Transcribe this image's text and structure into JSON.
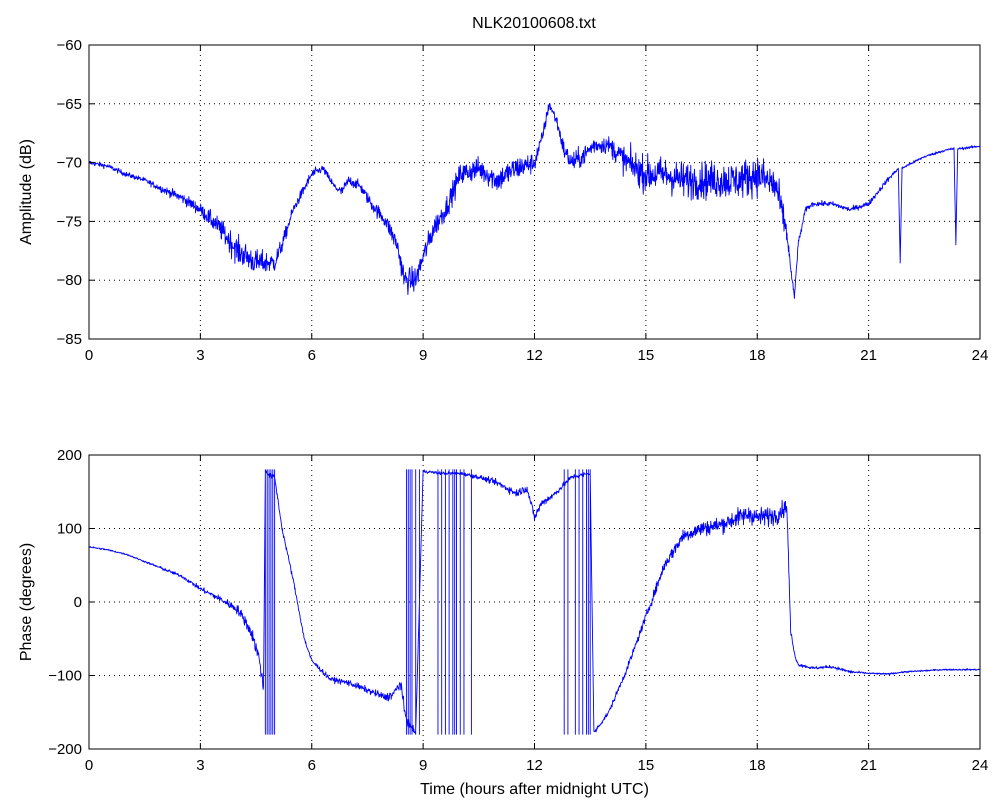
{
  "title": "NLK20100608.txt",
  "chart_data": [
    {
      "type": "line",
      "title": "NLK20100608.txt",
      "xlabel": "",
      "ylabel": "Amplitude (dB)",
      "xlim": [
        0,
        24
      ],
      "ylim": [
        -85,
        -60
      ],
      "xticks": [
        0,
        3,
        6,
        9,
        12,
        15,
        18,
        21,
        24
      ],
      "yticks": [
        -85,
        -80,
        -75,
        -70,
        -65,
        -60
      ],
      "grid": true,
      "line_color": "#0000ff",
      "series": [
        {
          "x": [
            0,
            0.5,
            1,
            1.5,
            2,
            2.5,
            3,
            3.5,
            4,
            4.5,
            5,
            5.2,
            5.5,
            6,
            6.3,
            6.6,
            6.8,
            7,
            7.3,
            7.6,
            8,
            8.3,
            8.5,
            8.8,
            9,
            9.3,
            9.6,
            10,
            10.5,
            11,
            11.5,
            12,
            12.2,
            12.4,
            12.6,
            12.8,
            13,
            13.3,
            13.6,
            14,
            14.5,
            15,
            15.5,
            16,
            16.5,
            17,
            17.5,
            18,
            18.5,
            18.8,
            18.9,
            19.0,
            19.1,
            19.3,
            19.5,
            20,
            20.5,
            21,
            21.5,
            21.8,
            21.85,
            21.9,
            22,
            22.5,
            23,
            23.3,
            23.35,
            23.4,
            23.5,
            24
          ],
          "y": [
            -70,
            -70.3,
            -71,
            -71.5,
            -72.3,
            -73,
            -74,
            -75.5,
            -77.5,
            -78.5,
            -78.5,
            -77,
            -74,
            -71,
            -70.5,
            -72,
            -72.5,
            -71.5,
            -72,
            -73.5,
            -75,
            -77,
            -80,
            -80,
            -78,
            -75.5,
            -74,
            -71,
            -70.5,
            -71.5,
            -70.5,
            -70,
            -68,
            -65,
            -66.5,
            -69,
            -70,
            -69.5,
            -68.5,
            -68.5,
            -70,
            -71,
            -71,
            -71.5,
            -71.5,
            -71.5,
            -71.5,
            -71,
            -72,
            -76,
            -79,
            -81.5,
            -77,
            -74,
            -73.5,
            -73.5,
            -74,
            -73.5,
            -71.5,
            -70.5,
            -78.5,
            -70.5,
            -70.3,
            -69.5,
            -69,
            -68.8,
            -77,
            -68.8,
            -68.8,
            -68.6
          ],
          "noise": [
            0.2,
            0.2,
            0.2,
            0.2,
            0.3,
            0.4,
            0.5,
            0.8,
            1.1,
            1.0,
            0.8,
            0.6,
            0.4,
            0.4,
            0.3,
            0.3,
            0.4,
            0.4,
            0.4,
            0.5,
            0.6,
            0.8,
            1.0,
            1.0,
            0.9,
            0.9,
            0.9,
            0.9,
            0.9,
            1.0,
            1.0,
            0.8,
            0.6,
            0.4,
            0.5,
            0.7,
            0.8,
            0.8,
            0.7,
            0.7,
            1.2,
            1.4,
            1.4,
            1.5,
            1.5,
            1.5,
            1.5,
            1.6,
            1.6,
            1.0,
            0.3,
            0.3,
            0.3,
            0.2,
            0.2,
            0.2,
            0.2,
            0.2,
            0.2,
            0.1,
            0.1,
            0.1,
            0.1,
            0.1,
            0.1,
            0.1,
            0.1,
            0.1,
            0.1,
            0.1
          ]
        }
      ]
    },
    {
      "type": "line",
      "title": "",
      "xlabel": "Time (hours after midnight UTC)",
      "ylabel": "Phase (degrees)",
      "xlim": [
        0,
        24
      ],
      "ylim": [
        -200,
        200
      ],
      "xticks": [
        0,
        3,
        6,
        9,
        12,
        15,
        18,
        21,
        24
      ],
      "yticks": [
        -200,
        -100,
        0,
        100,
        200
      ],
      "grid": true,
      "line_color": "#0000ff",
      "wrap_range": [
        -180,
        180
      ],
      "series": [
        {
          "x": [
            0,
            0.5,
            1,
            1.5,
            2,
            2.5,
            3,
            3.5,
            4,
            4.2,
            4.4,
            4.6,
            4.7,
            4.75,
            4.85,
            5.0,
            5.2,
            5.5,
            5.8,
            6,
            6.5,
            7,
            7.5,
            8,
            8.2,
            8.4,
            8.5,
            8.6,
            8.8,
            9,
            9.5,
            10,
            10.5,
            11,
            11.5,
            11.8,
            12,
            12.2,
            12.5,
            13,
            13.5,
            13.6,
            14,
            14.5,
            15,
            15.5,
            16,
            16.5,
            17,
            17.5,
            17.8,
            18,
            18.5,
            18.8,
            18.9,
            19.0,
            19.1,
            19.5,
            20,
            20.5,
            21,
            21.5,
            22,
            23,
            24
          ],
          "y": [
            75,
            71,
            65,
            55,
            45,
            35,
            18,
            5,
            -10,
            -25,
            -45,
            -80,
            -120,
            180,
            172,
            170,
            100,
            30,
            -50,
            -80,
            -105,
            -110,
            -120,
            -130,
            -125,
            -110,
            -150,
            -165,
            -178,
            178,
            175,
            175,
            170,
            162,
            148,
            155,
            115,
            135,
            145,
            170,
            175,
            -178,
            -150,
            -90,
            -20,
            50,
            90,
            100,
            105,
            115,
            120,
            115,
            118,
            130,
            -40,
            -70,
            -85,
            -90,
            -88,
            -95,
            -97,
            -98,
            -95,
            -92,
            -92
          ],
          "noise": [
            1,
            1,
            1,
            1,
            2,
            2,
            3,
            4,
            6,
            7,
            8,
            10,
            10,
            3,
            3,
            3,
            3,
            3,
            3,
            3,
            3,
            4,
            4,
            5,
            6,
            8,
            6,
            5,
            3,
            2,
            2,
            2,
            3,
            4,
            5,
            5,
            6,
            5,
            4,
            3,
            3,
            3,
            3,
            4,
            5,
            7,
            9,
            10,
            10,
            12,
            12,
            12,
            12,
            10,
            4,
            3,
            2,
            2,
            2,
            2,
            1,
            1,
            1,
            1,
            1
          ],
          "wrap_jumps": [
            4.75,
            4.8,
            4.85,
            4.9,
            4.95,
            5.0,
            8.55,
            8.6,
            8.65,
            8.7,
            8.8,
            8.9,
            9.4,
            9.5,
            9.6,
            9.7,
            9.8,
            9.85,
            9.9,
            10.0,
            10.1,
            10.3,
            12.8,
            12.9,
            13.1,
            13.2,
            13.3,
            13.4,
            13.45,
            13.5
          ]
        }
      ]
    }
  ]
}
